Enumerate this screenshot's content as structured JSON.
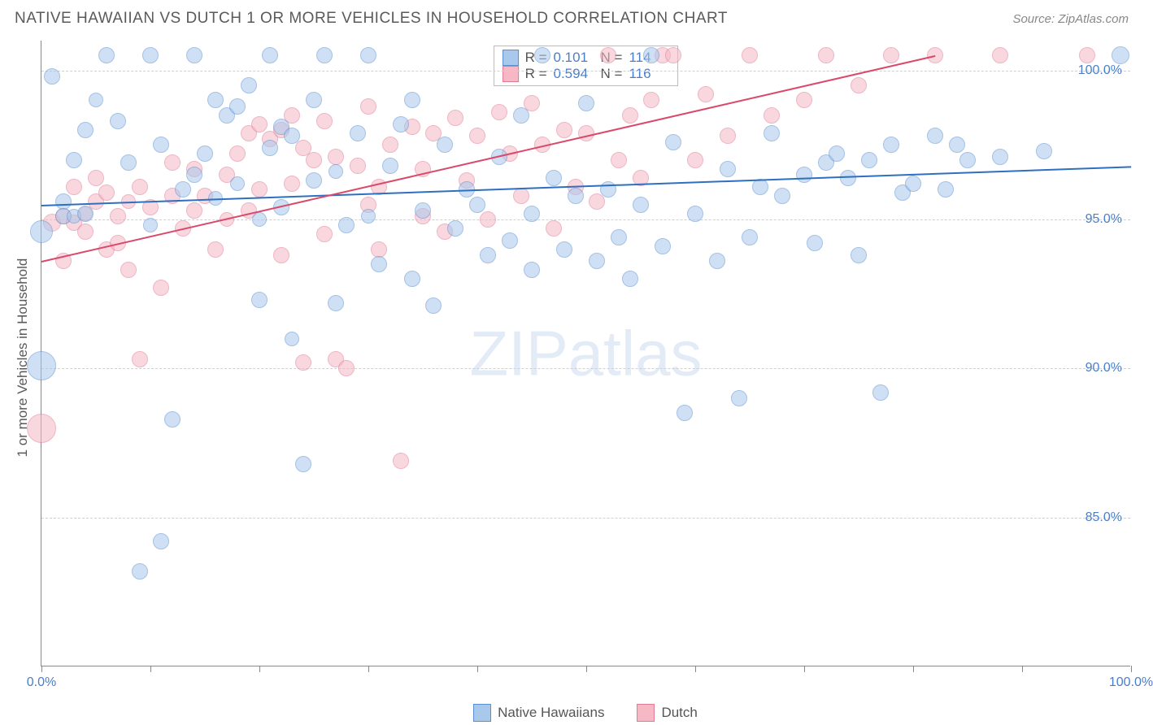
{
  "title": "NATIVE HAWAIIAN VS DUTCH 1 OR MORE VEHICLES IN HOUSEHOLD CORRELATION CHART",
  "source": "Source: ZipAtlas.com",
  "watermark": "ZIPatlas",
  "ylabel": "1 or more Vehicles in Household",
  "chart": {
    "type": "scatter",
    "xlim": [
      0,
      100
    ],
    "ylim": [
      80,
      101
    ],
    "x_ticks": [
      0,
      10,
      20,
      30,
      40,
      50,
      60,
      70,
      80,
      90,
      100
    ],
    "x_tick_labels": {
      "0": "0.0%",
      "100": "100.0%"
    },
    "y_ticks": [
      85,
      90,
      95,
      100
    ],
    "y_tick_labels": {
      "85": "85.0%",
      "90": "90.0%",
      "95": "95.0%",
      "100": "100.0%"
    },
    "background_color": "#ffffff",
    "grid_color": "#d0d0d0",
    "axis_color": "#888888",
    "label_color": "#4a7ec8",
    "marker_radius_min": 8,
    "marker_radius_max": 16,
    "marker_opacity": 0.55
  },
  "series": [
    {
      "name": "Native Hawaiians",
      "fill": "#a8c8ec",
      "stroke": "#5a8fd0",
      "line_color": "#2f6fc0",
      "line_width": 2,
      "R": "0.101",
      "N": "114",
      "trend": {
        "x1": 0,
        "y1": 95.5,
        "x2": 100,
        "y2": 96.8
      },
      "points": [
        [
          0,
          94.6,
          14
        ],
        [
          0,
          90.1,
          18
        ],
        [
          1,
          99.8,
          10
        ],
        [
          2,
          95.6,
          10
        ],
        [
          2,
          95.1,
          10
        ],
        [
          3,
          97.0,
          10
        ],
        [
          3,
          95.1,
          9
        ],
        [
          4,
          98.0,
          10
        ],
        [
          4,
          95.2,
          10
        ],
        [
          5,
          99.0,
          9
        ],
        [
          6,
          100.5,
          10
        ],
        [
          7,
          98.3,
          10
        ],
        [
          8,
          96.9,
          10
        ],
        [
          9,
          83.2,
          10
        ],
        [
          10,
          100.5,
          10
        ],
        [
          10,
          94.8,
          9
        ],
        [
          11,
          97.5,
          10
        ],
        [
          11,
          84.2,
          10
        ],
        [
          12,
          88.3,
          10
        ],
        [
          13,
          96.0,
          10
        ],
        [
          14,
          96.5,
          10
        ],
        [
          14,
          100.5,
          10
        ],
        [
          15,
          97.2,
          10
        ],
        [
          16,
          99.0,
          10
        ],
        [
          16,
          95.7,
          9
        ],
        [
          17,
          98.5,
          10
        ],
        [
          18,
          98.8,
          10
        ],
        [
          18,
          96.2,
          9
        ],
        [
          19,
          99.5,
          10
        ],
        [
          20,
          92.3,
          10
        ],
        [
          20,
          95.0,
          9
        ],
        [
          21,
          97.4,
          10
        ],
        [
          21,
          100.5,
          10
        ],
        [
          22,
          95.4,
          10
        ],
        [
          22,
          98.1,
          10
        ],
        [
          23,
          97.8,
          10
        ],
        [
          23,
          91.0,
          9
        ],
        [
          24,
          86.8,
          10
        ],
        [
          25,
          96.3,
          10
        ],
        [
          25,
          99.0,
          10
        ],
        [
          26,
          100.5,
          10
        ],
        [
          27,
          92.2,
          10
        ],
        [
          27,
          96.6,
          9
        ],
        [
          28,
          94.8,
          10
        ],
        [
          29,
          97.9,
          10
        ],
        [
          30,
          100.5,
          10
        ],
        [
          30,
          95.1,
          9
        ],
        [
          31,
          93.5,
          10
        ],
        [
          32,
          96.8,
          10
        ],
        [
          33,
          98.2,
          10
        ],
        [
          34,
          93.0,
          10
        ],
        [
          34,
          99.0,
          10
        ],
        [
          35,
          95.3,
          10
        ],
        [
          36,
          92.1,
          10
        ],
        [
          37,
          97.5,
          10
        ],
        [
          38,
          94.7,
          10
        ],
        [
          39,
          96.0,
          10
        ],
        [
          40,
          95.5,
          10
        ],
        [
          41,
          93.8,
          10
        ],
        [
          42,
          97.1,
          10
        ],
        [
          43,
          94.3,
          10
        ],
        [
          44,
          98.5,
          10
        ],
        [
          45,
          95.2,
          10
        ],
        [
          45,
          93.3,
          10
        ],
        [
          46,
          100.5,
          10
        ],
        [
          47,
          96.4,
          10
        ],
        [
          48,
          94.0,
          10
        ],
        [
          49,
          95.8,
          10
        ],
        [
          50,
          98.9,
          10
        ],
        [
          51,
          93.6,
          10
        ],
        [
          52,
          96.0,
          10
        ],
        [
          53,
          94.4,
          10
        ],
        [
          54,
          93.0,
          10
        ],
        [
          55,
          95.5,
          10
        ],
        [
          56,
          100.5,
          10
        ],
        [
          57,
          94.1,
          10
        ],
        [
          58,
          97.6,
          10
        ],
        [
          59,
          88.5,
          10
        ],
        [
          60,
          95.2,
          10
        ],
        [
          62,
          93.6,
          10
        ],
        [
          63,
          96.7,
          10
        ],
        [
          64,
          89.0,
          10
        ],
        [
          65,
          94.4,
          10
        ],
        [
          66,
          96.1,
          10
        ],
        [
          67,
          97.9,
          10
        ],
        [
          68,
          95.8,
          10
        ],
        [
          70,
          96.5,
          10
        ],
        [
          71,
          94.2,
          10
        ],
        [
          72,
          96.9,
          10
        ],
        [
          73,
          97.2,
          10
        ],
        [
          74,
          96.4,
          10
        ],
        [
          75,
          93.8,
          10
        ],
        [
          76,
          97.0,
          10
        ],
        [
          77,
          89.2,
          10
        ],
        [
          78,
          97.5,
          10
        ],
        [
          79,
          95.9,
          10
        ],
        [
          80,
          96.2,
          10
        ],
        [
          82,
          97.8,
          10
        ],
        [
          83,
          96.0,
          10
        ],
        [
          84,
          97.5,
          10
        ],
        [
          85,
          97.0,
          10
        ],
        [
          88,
          97.1,
          10
        ],
        [
          92,
          97.3,
          10
        ],
        [
          99,
          100.5,
          11
        ]
      ]
    },
    {
      "name": "Dutch",
      "fill": "#f5b8c4",
      "stroke": "#e27a94",
      "line_color": "#d94a6a",
      "line_width": 2,
      "R": "0.594",
      "N": "116",
      "trend": {
        "x1": 0,
        "y1": 93.6,
        "x2": 82,
        "y2": 100.5
      },
      "points": [
        [
          0,
          88.0,
          18
        ],
        [
          1,
          94.9,
          11
        ],
        [
          2,
          93.6,
          10
        ],
        [
          2,
          95.1,
          10
        ],
        [
          3,
          94.9,
          10
        ],
        [
          3,
          96.1,
          10
        ],
        [
          4,
          95.2,
          9
        ],
        [
          4,
          94.6,
          10
        ],
        [
          5,
          95.6,
          10
        ],
        [
          5,
          96.4,
          10
        ],
        [
          6,
          94.0,
          10
        ],
        [
          6,
          95.9,
          10
        ],
        [
          7,
          95.1,
          10
        ],
        [
          7,
          94.2,
          10
        ],
        [
          8,
          95.6,
          9
        ],
        [
          8,
          93.3,
          10
        ],
        [
          9,
          96.1,
          10
        ],
        [
          9,
          90.3,
          10
        ],
        [
          10,
          95.4,
          10
        ],
        [
          11,
          92.7,
          10
        ],
        [
          12,
          95.8,
          10
        ],
        [
          12,
          96.9,
          10
        ],
        [
          13,
          94.7,
          10
        ],
        [
          14,
          95.3,
          10
        ],
        [
          14,
          96.7,
          10
        ],
        [
          15,
          95.8,
          10
        ],
        [
          16,
          94.0,
          10
        ],
        [
          17,
          96.5,
          10
        ],
        [
          17,
          95.0,
          9
        ],
        [
          18,
          97.2,
          10
        ],
        [
          19,
          97.9,
          10
        ],
        [
          19,
          95.3,
          10
        ],
        [
          20,
          98.2,
          10
        ],
        [
          20,
          96.0,
          10
        ],
        [
          21,
          97.7,
          10
        ],
        [
          22,
          98.0,
          10
        ],
        [
          22,
          93.8,
          10
        ],
        [
          23,
          96.2,
          10
        ],
        [
          23,
          98.5,
          10
        ],
        [
          24,
          97.4,
          10
        ],
        [
          24,
          90.2,
          10
        ],
        [
          25,
          97.0,
          10
        ],
        [
          26,
          94.5,
          10
        ],
        [
          26,
          98.3,
          10
        ],
        [
          27,
          97.1,
          10
        ],
        [
          27,
          90.3,
          10
        ],
        [
          28,
          90.0,
          10
        ],
        [
          29,
          96.8,
          10
        ],
        [
          30,
          95.5,
          10
        ],
        [
          30,
          98.8,
          10
        ],
        [
          31,
          96.1,
          10
        ],
        [
          31,
          94.0,
          10
        ],
        [
          32,
          97.5,
          10
        ],
        [
          33,
          86.9,
          10
        ],
        [
          34,
          98.1,
          10
        ],
        [
          35,
          96.7,
          10
        ],
        [
          35,
          95.1,
          10
        ],
        [
          36,
          97.9,
          10
        ],
        [
          37,
          94.6,
          10
        ],
        [
          38,
          98.4,
          10
        ],
        [
          39,
          96.3,
          10
        ],
        [
          40,
          97.8,
          10
        ],
        [
          41,
          95.0,
          10
        ],
        [
          42,
          98.6,
          10
        ],
        [
          43,
          97.2,
          10
        ],
        [
          44,
          95.8,
          10
        ],
        [
          45,
          98.9,
          10
        ],
        [
          46,
          97.5,
          10
        ],
        [
          47,
          94.7,
          10
        ],
        [
          48,
          98.0,
          10
        ],
        [
          49,
          96.1,
          10
        ],
        [
          50,
          97.9,
          10
        ],
        [
          51,
          95.6,
          10
        ],
        [
          52,
          100.5,
          10
        ],
        [
          53,
          97.0,
          10
        ],
        [
          54,
          98.5,
          10
        ],
        [
          55,
          96.4,
          10
        ],
        [
          56,
          99.0,
          10
        ],
        [
          57,
          100.5,
          10
        ],
        [
          58,
          100.5,
          10
        ],
        [
          60,
          97.0,
          10
        ],
        [
          61,
          99.2,
          10
        ],
        [
          63,
          97.8,
          10
        ],
        [
          65,
          100.5,
          10
        ],
        [
          67,
          98.5,
          10
        ],
        [
          70,
          99.0,
          10
        ],
        [
          72,
          100.5,
          10
        ],
        [
          75,
          99.5,
          10
        ],
        [
          78,
          100.5,
          10
        ],
        [
          82,
          100.5,
          10
        ],
        [
          88,
          100.5,
          10
        ],
        [
          96,
          100.5,
          10
        ]
      ]
    }
  ],
  "legend": {
    "items": [
      {
        "label": "Native Hawaiians",
        "fill": "#a8c8ec",
        "stroke": "#5a8fd0"
      },
      {
        "label": "Dutch",
        "fill": "#f5b8c4",
        "stroke": "#e27a94"
      }
    ]
  }
}
